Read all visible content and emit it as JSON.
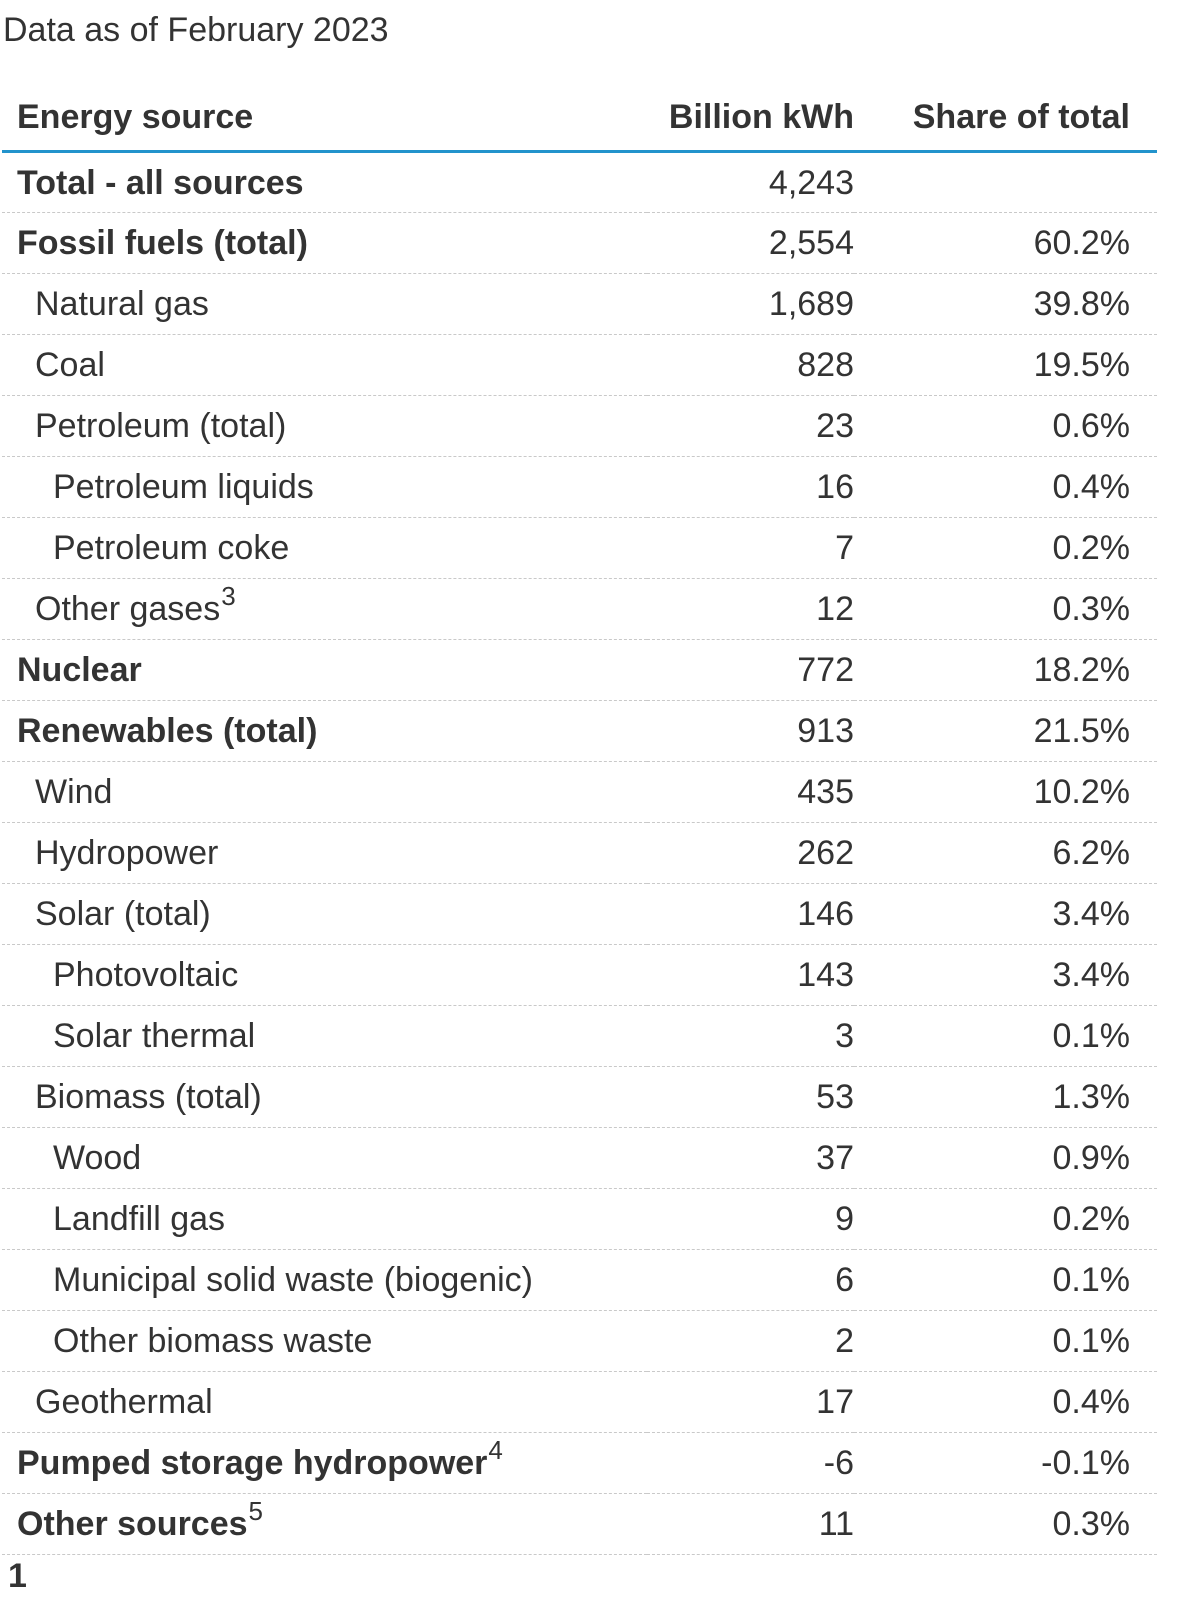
{
  "page": {
    "data_as_of": "Data as of February 2023",
    "footnote_marker": "1"
  },
  "colors": {
    "accent_blue": "#2293cc",
    "row_divider": "#c9c9c9",
    "text": "#333333",
    "background": "#ffffff"
  },
  "chart_data": {
    "type": "table",
    "title": "Data as of February 2023",
    "columns": [
      "Energy source",
      "Billion kWh",
      "Share of total"
    ],
    "layout": {
      "header_rule": "3px solid blue",
      "row_rule": "1px dashed gray",
      "value_columns_align": "right",
      "bold_applies_to_label_only": true
    },
    "rows": [
      {
        "label": "Total - all sources",
        "sup": "",
        "kwh": "4,243",
        "share": "",
        "bold": true,
        "indent": 0
      },
      {
        "label": "Fossil fuels (total)",
        "sup": "",
        "kwh": "2,554",
        "share": "60.2%",
        "bold": true,
        "indent": 0
      },
      {
        "label": "Natural gas",
        "sup": "",
        "kwh": "1,689",
        "share": "39.8%",
        "bold": false,
        "indent": 1
      },
      {
        "label": "Coal",
        "sup": "",
        "kwh": "828",
        "share": "19.5%",
        "bold": false,
        "indent": 1
      },
      {
        "label": "Petroleum (total)",
        "sup": "",
        "kwh": "23",
        "share": "0.6%",
        "bold": false,
        "indent": 1
      },
      {
        "label": "Petroleum liquids",
        "sup": "",
        "kwh": "16",
        "share": "0.4%",
        "bold": false,
        "indent": 2
      },
      {
        "label": "Petroleum coke",
        "sup": "",
        "kwh": "7",
        "share": "0.2%",
        "bold": false,
        "indent": 2
      },
      {
        "label": "Other gases",
        "sup": "3",
        "kwh": "12",
        "share": "0.3%",
        "bold": false,
        "indent": 1
      },
      {
        "label": "Nuclear",
        "sup": "",
        "kwh": "772",
        "share": "18.2%",
        "bold": true,
        "indent": 0
      },
      {
        "label": "Renewables (total)",
        "sup": "",
        "kwh": "913",
        "share": "21.5%",
        "bold": true,
        "indent": 0
      },
      {
        "label": "Wind",
        "sup": "",
        "kwh": "435",
        "share": "10.2%",
        "bold": false,
        "indent": 1
      },
      {
        "label": "Hydropower",
        "sup": "",
        "kwh": "262",
        "share": "6.2%",
        "bold": false,
        "indent": 1
      },
      {
        "label": "Solar (total)",
        "sup": "",
        "kwh": "146",
        "share": "3.4%",
        "bold": false,
        "indent": 1
      },
      {
        "label": "Photovoltaic",
        "sup": "",
        "kwh": "143",
        "share": "3.4%",
        "bold": false,
        "indent": 2
      },
      {
        "label": "Solar thermal",
        "sup": "",
        "kwh": "3",
        "share": "0.1%",
        "bold": false,
        "indent": 2
      },
      {
        "label": "Biomass (total)",
        "sup": "",
        "kwh": "53",
        "share": "1.3%",
        "bold": false,
        "indent": 1
      },
      {
        "label": "Wood",
        "sup": "",
        "kwh": "37",
        "share": "0.9%",
        "bold": false,
        "indent": 2
      },
      {
        "label": "Landfill gas",
        "sup": "",
        "kwh": "9",
        "share": "0.2%",
        "bold": false,
        "indent": 2
      },
      {
        "label": "Municipal solid waste (biogenic)",
        "sup": "",
        "kwh": "6",
        "share": "0.1%",
        "bold": false,
        "indent": 2
      },
      {
        "label": "Other biomass waste",
        "sup": "",
        "kwh": "2",
        "share": "0.1%",
        "bold": false,
        "indent": 2
      },
      {
        "label": "Geothermal",
        "sup": "",
        "kwh": "17",
        "share": "0.4%",
        "bold": false,
        "indent": 1
      },
      {
        "label": "Pumped storage hydropower",
        "sup": "4",
        "kwh": "-6",
        "share": "-0.1%",
        "bold": true,
        "indent": 0
      },
      {
        "label": "Other sources",
        "sup": "5",
        "kwh": "11",
        "share": "0.3%",
        "bold": true,
        "indent": 0
      }
    ]
  }
}
